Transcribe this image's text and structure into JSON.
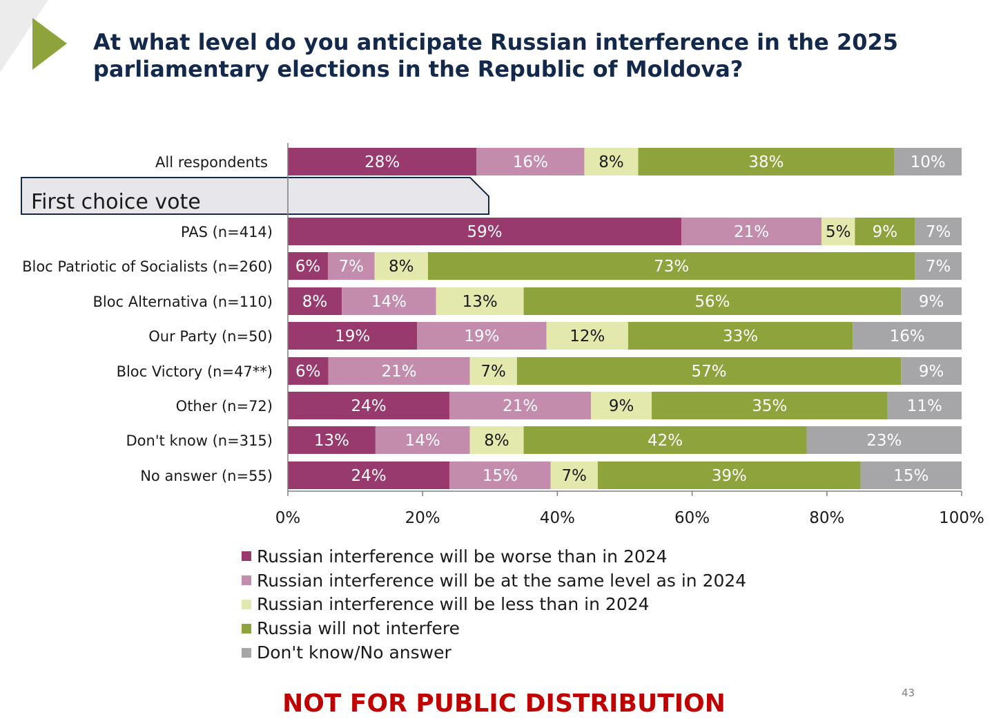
{
  "title_lines": [
    "At what level do you anticipate Russian interference in the 2025",
    "parliamentary elections in the Republic of Moldova?"
  ],
  "chart_data": {
    "type": "bar",
    "orientation": "horizontal-stacked-100",
    "group_label": "First choice vote",
    "categories": [
      "All respondents",
      "PAS  (n=414)",
      "Bloc Patriotic of Socialists (n=260)",
      "Bloc Alternativa (n=110)",
      "Our Party (n=50)",
      "Bloc Victory (n=47**)",
      "Other (n=72)",
      "Don't know (n=315)",
      "No answer (n=55)"
    ],
    "series": [
      {
        "name": "Russian interference will be worse than in 2024",
        "color": "#993a6e",
        "label_color": "#ffffff",
        "values": [
          28,
          59,
          6,
          8,
          19,
          6,
          24,
          13,
          24
        ]
      },
      {
        "name": "Russian interference will be at the same level as in 2024",
        "color": "#c38cad",
        "label_color": "#ffffff",
        "values": [
          16,
          21,
          7,
          14,
          19,
          21,
          21,
          14,
          15
        ]
      },
      {
        "name": "Russian interference will be less than in 2024",
        "color": "#e3e9ad",
        "label_color": "#1a1a1a",
        "values": [
          8,
          5,
          8,
          13,
          12,
          7,
          9,
          8,
          7
        ]
      },
      {
        "name": "Russia will not interfere",
        "color": "#8fa33d",
        "label_color": "#ffffff",
        "values": [
          38,
          9,
          73,
          56,
          33,
          57,
          35,
          42,
          39
        ]
      },
      {
        "name": "Don't know/No answer",
        "color": "#a6a6a8",
        "label_color": "#ffffff",
        "values": [
          10,
          7,
          7,
          9,
          16,
          9,
          11,
          23,
          15
        ]
      }
    ],
    "xlim": [
      0,
      100
    ],
    "xticks": [
      "0%",
      "20%",
      "40%",
      "60%",
      "80%",
      "100%"
    ],
    "xlabel": "",
    "ylabel": ""
  },
  "footer": "NOT FOR PUBLIC DISTRIBUTION",
  "page_number": "43"
}
